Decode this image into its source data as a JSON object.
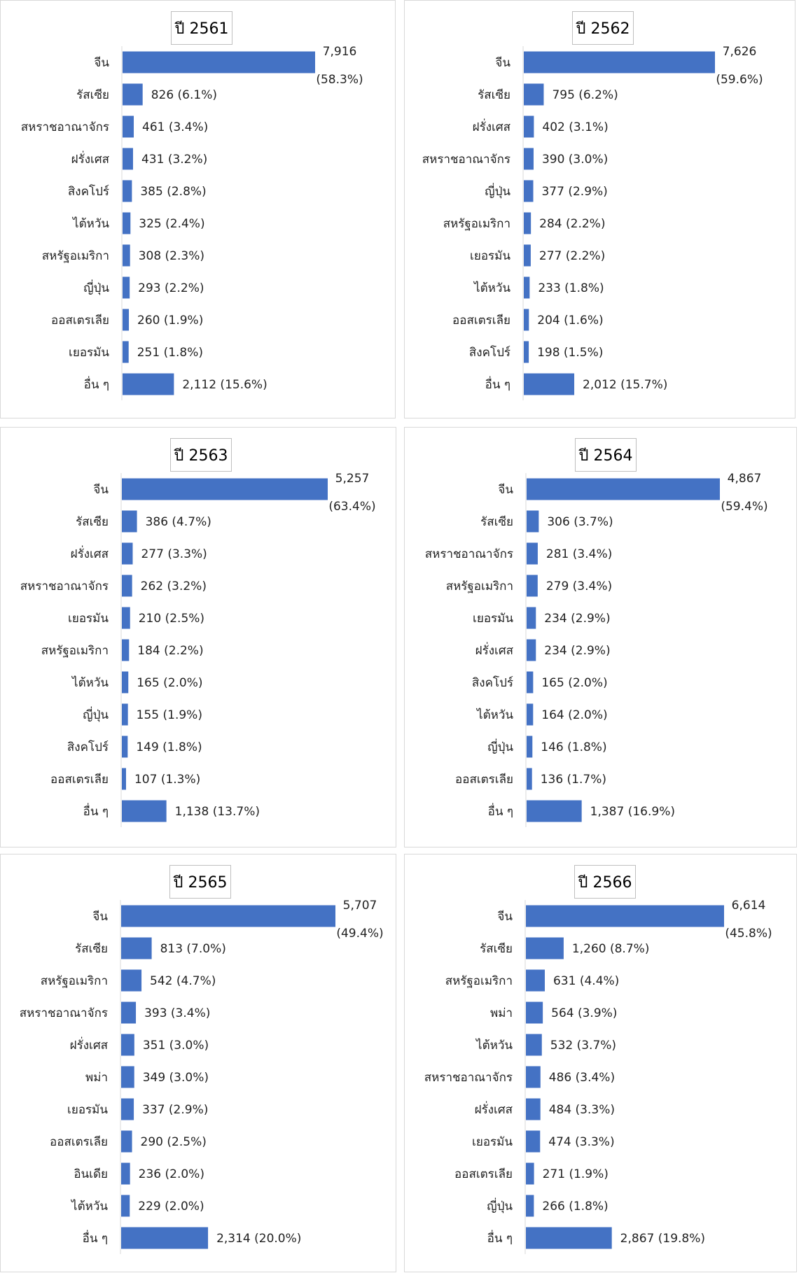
{
  "bar_color": "#4472C4",
  "chart_data": [
    {
      "type": "bar",
      "orientation": "horizontal",
      "title": "ปี 2561",
      "categories": [
        "จีน",
        "รัสเซีย",
        "สหราชอาณาจักร",
        "ฝรั่งเศส",
        "สิงคโปร์",
        "ไต้หวัน",
        "สหรัฐอเมริกา",
        "ญี่ปุ่น",
        "ออสเตรเลีย",
        "เยอรมัน",
        "อื่น ๆ"
      ],
      "values": [
        7916,
        826,
        461,
        431,
        385,
        325,
        308,
        293,
        260,
        251,
        2112
      ],
      "data_labels": [
        "7,916 (58.3%)",
        "826 (6.1%)",
        "461 (3.4%)",
        "431 (3.2%)",
        "385 (2.8%)",
        "325 (2.4%)",
        "308 (2.3%)",
        "293 (2.2%)",
        "260 (1.9%)",
        "251 (1.8%)",
        "2,112 (15.6%)"
      ],
      "top_label_value": "7,916",
      "top_label_pct": "(58.3%)",
      "xlim": [
        0,
        7916
      ]
    },
    {
      "type": "bar",
      "orientation": "horizontal",
      "title": "ปี 2562",
      "categories": [
        "จีน",
        "รัสเซีย",
        "ฝรั่งเศส",
        "สหราชอาณาจักร",
        "ญี่ปุ่น",
        "สหรัฐอเมริกา",
        "เยอรมัน",
        "ไต้หวัน",
        "ออสเตรเลีย",
        "สิงคโปร์",
        "อื่น ๆ"
      ],
      "values": [
        7626,
        795,
        402,
        390,
        377,
        284,
        277,
        233,
        204,
        198,
        2012
      ],
      "data_labels": [
        "7,626 (59.6%)",
        "795 (6.2%)",
        "402 (3.1%)",
        "390 (3.0%)",
        "377 (2.9%)",
        "284 (2.2%)",
        "277 (2.2%)",
        "233 (1.8%)",
        "204 (1.6%)",
        "198 (1.5%)",
        "2,012 (15.7%)"
      ],
      "top_label_value": "7,626",
      "top_label_pct": "(59.6%)",
      "xlim": [
        0,
        7626
      ]
    },
    {
      "type": "bar",
      "orientation": "horizontal",
      "title": "ปี 2563",
      "categories": [
        "จีน",
        "รัสเซีย",
        "ฝรั่งเศส",
        "สหราชอาณาจักร",
        "เยอรมัน",
        "สหรัฐอเมริกา",
        "ไต้หวัน",
        "ญี่ปุ่น",
        "สิงคโปร์",
        "ออสเตรเลีย",
        "อื่น ๆ"
      ],
      "values": [
        5257,
        386,
        277,
        262,
        210,
        184,
        165,
        155,
        149,
        107,
        1138
      ],
      "data_labels": [
        "5,257 (63.4%)",
        "386 (4.7%)",
        "277 (3.3%)",
        "262 (3.2%)",
        "210 (2.5%)",
        "184 (2.2%)",
        "165 (2.0%)",
        "155 (1.9%)",
        "149 (1.8%)",
        "107 (1.3%)",
        "1,138 (13.7%)"
      ],
      "top_label_value": "5,257",
      "top_label_pct": "(63.4%)",
      "xlim": [
        0,
        5257
      ]
    },
    {
      "type": "bar",
      "orientation": "horizontal",
      "title": "ปี 2564",
      "categories": [
        "จีน",
        "รัสเซีย",
        "สหราชอาณาจักร",
        "สหรัฐอเมริกา",
        "เยอรมัน",
        "ฝรั่งเศส",
        "สิงคโปร์",
        "ไต้หวัน",
        "ญี่ปุ่น",
        "ออสเตรเลีย",
        "อื่น ๆ"
      ],
      "values": [
        4867,
        306,
        281,
        279,
        234,
        234,
        165,
        164,
        146,
        136,
        1387
      ],
      "data_labels": [
        "4,867 (59.4%)",
        "306 (3.7%)",
        "281 (3.4%)",
        "279 (3.4%)",
        "234 (2.9%)",
        "234 (2.9%)",
        "165 (2.0%)",
        "164 (2.0%)",
        "146 (1.8%)",
        "136 (1.7%)",
        "1,387 (16.9%)"
      ],
      "top_label_value": "4,867",
      "top_label_pct": "(59.4%)",
      "xlim": [
        0,
        4867
      ]
    },
    {
      "type": "bar",
      "orientation": "horizontal",
      "title": "ปี 2565",
      "categories": [
        "จีน",
        "รัสเซีย",
        "สหรัฐอเมริกา",
        "สหราชอาณาจักร",
        "ฝรั่งเศส",
        "พม่า",
        "เยอรมัน",
        "ออสเตรเลีย",
        "อินเดีย",
        "ไต้หวัน",
        "อื่น ๆ"
      ],
      "values": [
        5707,
        813,
        542,
        393,
        351,
        349,
        337,
        290,
        236,
        229,
        2314
      ],
      "data_labels": [
        "5,707 (49.4%)",
        "813 (7.0%)",
        "542 (4.7%)",
        "393 (3.4%)",
        "351 (3.0%)",
        "349 (3.0%)",
        "337 (2.9%)",
        "290 (2.5%)",
        "236 (2.0%)",
        "229 (2.0%)",
        "2,314 (20.0%)"
      ],
      "top_label_value": "5,707",
      "top_label_pct": "(49.4%)",
      "xlim": [
        0,
        5707
      ]
    },
    {
      "type": "bar",
      "orientation": "horizontal",
      "title": "ปี 2566",
      "categories": [
        "จีน",
        "รัสเซีย",
        "สหรัฐอเมริกา",
        "พม่า",
        "ไต้หวัน",
        "สหราชอาณาจักร",
        "ฝรั่งเศส",
        "เยอรมัน",
        "ออสเตรเลีย",
        "ญี่ปุ่น",
        "อื่น ๆ"
      ],
      "values": [
        6614,
        1260,
        631,
        564,
        532,
        486,
        484,
        474,
        271,
        266,
        2867
      ],
      "data_labels": [
        "6,614 (45.8%)",
        "1,260 (8.7%)",
        "631 (4.4%)",
        "564 (3.9%)",
        "532 (3.7%)",
        "486 (3.4%)",
        "484 (3.3%)",
        "474 (3.3%)",
        "271 (1.9%)",
        "266 (1.8%)",
        "2,867 (19.8%)"
      ],
      "top_label_value": "6,614",
      "top_label_pct": "(45.8%)",
      "xlim": [
        0,
        6614
      ]
    }
  ]
}
